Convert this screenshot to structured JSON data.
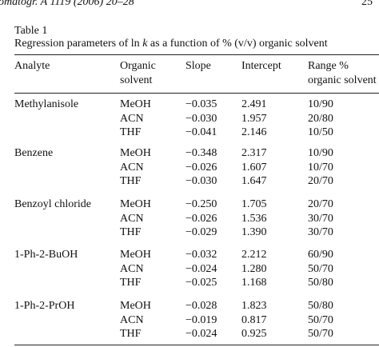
{
  "running_header": {
    "journal": "omatogr. A 1119 (2006) 20–28",
    "page": "25"
  },
  "table": {
    "label": "Table 1",
    "caption": [
      "Regression parameters of ln ",
      "k",
      " as a function of % (v/v) organic solvent"
    ],
    "columns": [
      [
        "Analyte"
      ],
      [
        "Organic",
        "solvent"
      ],
      [
        "Slope"
      ],
      [
        "Intercept"
      ],
      [
        "Range %",
        "organic solvent"
      ]
    ],
    "groups": [
      {
        "analyte": "Methylanisole",
        "rows": [
          [
            "MeOH",
            "−0.035",
            "2.491",
            "10/90"
          ],
          [
            "ACN",
            "−0.030",
            "1.957",
            "20/80"
          ],
          [
            "THF",
            "−0.041",
            "2.146",
            "10/50"
          ]
        ]
      },
      {
        "analyte": "Benzene",
        "rows": [
          [
            "MeOH",
            "−0.348",
            "2.317",
            "10/90"
          ],
          [
            "ACN",
            "−0.026",
            "1.607",
            "10/70"
          ],
          [
            "THF",
            "−0.030",
            "1.647",
            "20/70"
          ]
        ]
      },
      {
        "analyte": "Benzoyl chloride",
        "rows": [
          [
            "MeOH",
            "−0.250",
            "1.705",
            "20/70"
          ],
          [
            "ACN",
            "−0.026",
            "1.536",
            "30/70"
          ],
          [
            "THF",
            "−0.029",
            "1.390",
            "30/70"
          ]
        ]
      },
      {
        "analyte": "1-Ph-2-BuOH",
        "rows": [
          [
            "MeOH",
            "−0.032",
            "2.212",
            "60/90"
          ],
          [
            "ACN",
            "−0.024",
            "1.280",
            "50/70"
          ],
          [
            "THF",
            "−0.025",
            "1.168",
            "50/80"
          ]
        ]
      },
      {
        "analyte": "1-Ph-2-PrOH",
        "rows": [
          [
            "MeOH",
            "−0.028",
            "1.823",
            "50/80"
          ],
          [
            "ACN",
            "−0.019",
            "0.817",
            "50/70"
          ],
          [
            "THF",
            "−0.024",
            "0.925",
            "50/70"
          ]
        ]
      }
    ]
  }
}
